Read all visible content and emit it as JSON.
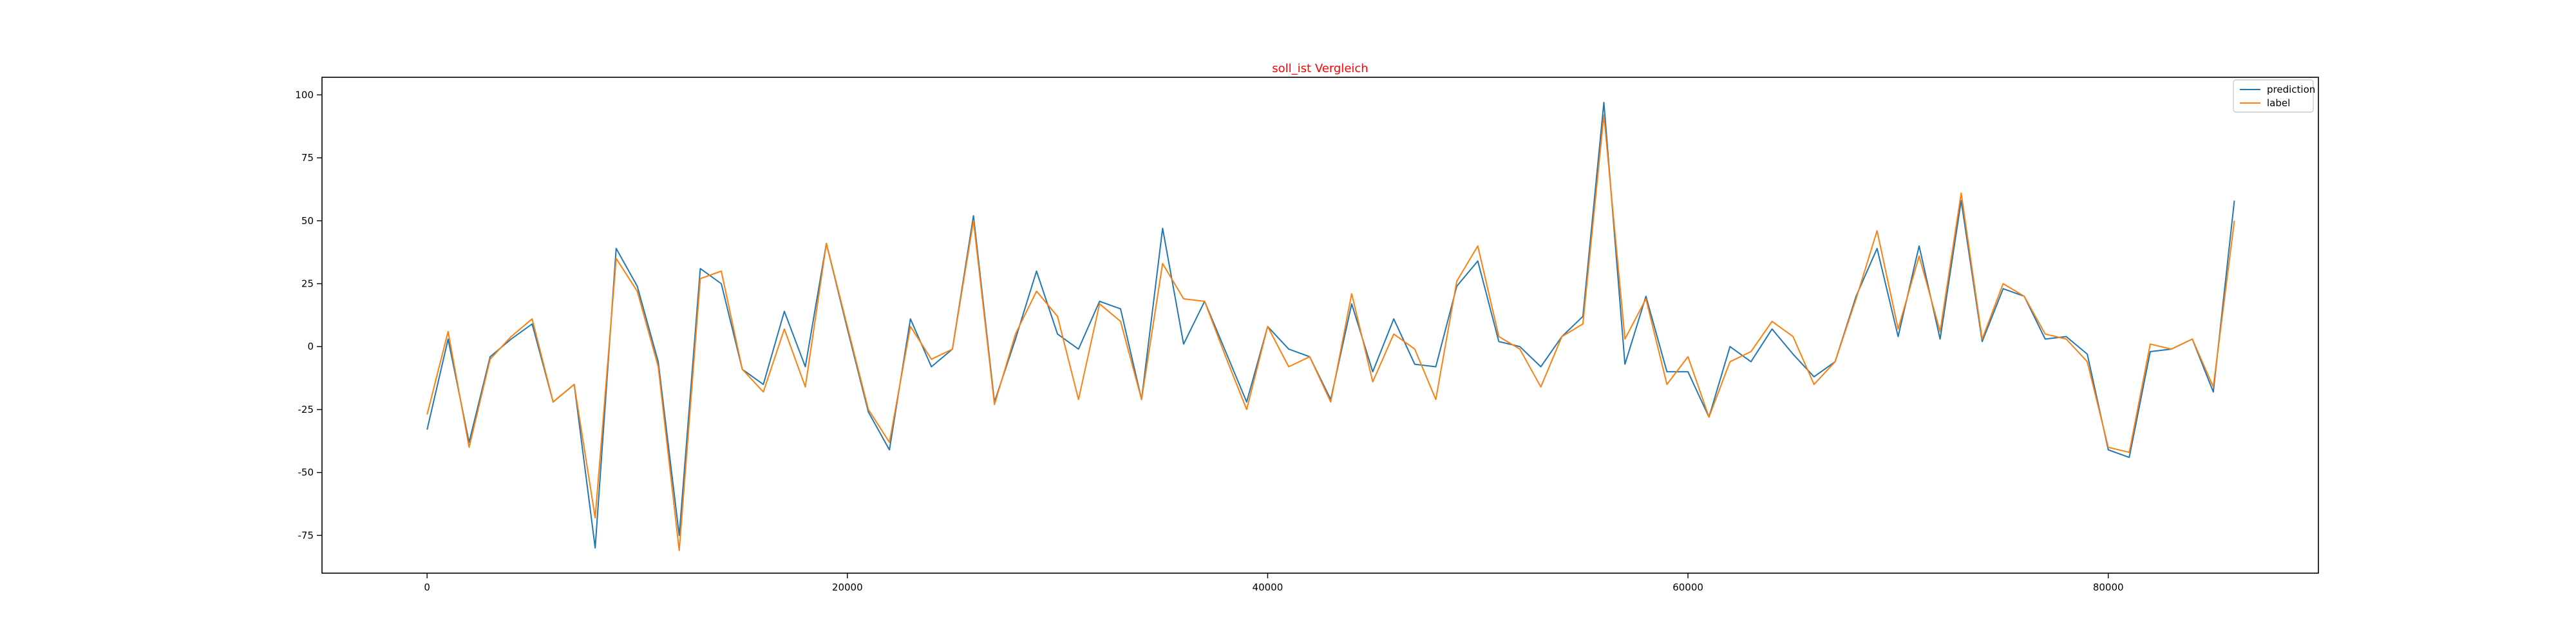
{
  "chart_data": {
    "type": "line",
    "title": "soll_ist Vergleich",
    "title_color": "#ff0000",
    "xlabel": "",
    "ylabel": "",
    "xlim": [
      -5000,
      90000
    ],
    "ylim": [
      -90,
      107
    ],
    "x_ticks": [
      0,
      20000,
      40000,
      60000,
      80000
    ],
    "y_ticks": [
      -75,
      -50,
      -25,
      0,
      25,
      50,
      75,
      100
    ],
    "grid": false,
    "legend_position": "top-right",
    "x": [
      0,
      1000,
      2000,
      3000,
      4000,
      5000,
      6000,
      7000,
      8000,
      9000,
      10000,
      11000,
      12000,
      13000,
      14000,
      15000,
      16000,
      17000,
      18000,
      19000,
      20000,
      21000,
      22000,
      23000,
      24000,
      25000,
      26000,
      27000,
      28000,
      29000,
      30000,
      31000,
      32000,
      33000,
      34000,
      35000,
      36000,
      37000,
      38000,
      39000,
      40000,
      41000,
      42000,
      43000,
      44000,
      45000,
      46000,
      47000,
      48000,
      49000,
      50000,
      51000,
      52000,
      53000,
      54000,
      55000,
      56000,
      57000,
      58000,
      59000,
      60000,
      61000,
      62000,
      63000,
      64000,
      65000,
      66000,
      67000,
      68000,
      69000,
      70000,
      71000,
      72000,
      73000,
      74000,
      75000,
      76000,
      77000,
      78000,
      79000,
      80000,
      81000,
      82000,
      83000,
      84000,
      85000,
      86000
    ],
    "series": [
      {
        "name": "prediction",
        "color": "#1f77b4",
        "values": [
          -33,
          3,
          -38,
          -4,
          3,
          9,
          -22,
          -15,
          -80,
          39,
          24,
          -6,
          -75,
          31,
          25,
          -9,
          -15,
          14,
          -8,
          41,
          7,
          -26,
          -41,
          11,
          -8,
          -1,
          52,
          -22,
          3,
          30,
          5,
          -1,
          18,
          15,
          -21,
          47,
          1,
          18,
          -2,
          -22,
          8,
          -1,
          -4,
          -21,
          17,
          -10,
          11,
          -7,
          -8,
          24,
          34,
          2,
          0,
          -8,
          4,
          12,
          97,
          -7,
          20,
          -10,
          -10,
          -28,
          0,
          -6,
          7,
          -3,
          -12,
          -6,
          20,
          39,
          4,
          40,
          3,
          58,
          2,
          23,
          20,
          3,
          4,
          -3,
          -41,
          -44,
          -2,
          -1,
          3,
          -18,
          58
        ]
      },
      {
        "name": "label",
        "color": "#ff7f0e",
        "values": [
          -27,
          6,
          -40,
          -5,
          4,
          11,
          -22,
          -15,
          -68,
          35,
          22,
          -8,
          -81,
          27,
          30,
          -9,
          -18,
          7,
          -16,
          41,
          8,
          -25,
          -38,
          8,
          -5,
          -1,
          50,
          -23,
          5,
          22,
          12,
          -21,
          17,
          10,
          -21,
          33,
          19,
          18,
          -4,
          -25,
          8,
          -8,
          -4,
          -22,
          21,
          -14,
          5,
          -1,
          -21,
          26,
          40,
          4,
          -1,
          -16,
          4,
          9,
          92,
          3,
          19,
          -15,
          -4,
          -28,
          -6,
          -2,
          10,
          4,
          -15,
          -6,
          19,
          46,
          7,
          36,
          6,
          61,
          3,
          25,
          20,
          5,
          3,
          -6,
          -40,
          -42,
          1,
          -1,
          3,
          -16,
          50
        ]
      }
    ]
  }
}
